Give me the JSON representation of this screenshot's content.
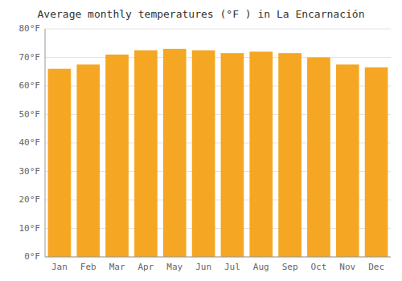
{
  "chart_data": {
    "type": "bar",
    "title": "Average monthly temperatures (°F ) in La Encarnación",
    "categories": [
      "Jan",
      "Feb",
      "Mar",
      "Apr",
      "May",
      "Jun",
      "Jul",
      "Aug",
      "Sep",
      "Oct",
      "Nov",
      "Dec"
    ],
    "values": [
      66,
      67.5,
      71,
      72.5,
      73,
      72.5,
      71.5,
      72,
      71.5,
      70,
      67.5,
      66.5
    ],
    "color": "#F5A623",
    "ylim": [
      0,
      80
    ],
    "yticks": [
      {
        "value": 0,
        "label": "0°F"
      },
      {
        "value": 10,
        "label": "10°F"
      },
      {
        "value": 20,
        "label": "20°F"
      },
      {
        "value": 30,
        "label": "30°F"
      },
      {
        "value": 40,
        "label": "40°F"
      },
      {
        "value": 50,
        "label": "50°F"
      },
      {
        "value": 60,
        "label": "60°F"
      },
      {
        "value": 70,
        "label": "70°F"
      },
      {
        "value": 80,
        "label": "80°F"
      }
    ],
    "grid": true
  }
}
